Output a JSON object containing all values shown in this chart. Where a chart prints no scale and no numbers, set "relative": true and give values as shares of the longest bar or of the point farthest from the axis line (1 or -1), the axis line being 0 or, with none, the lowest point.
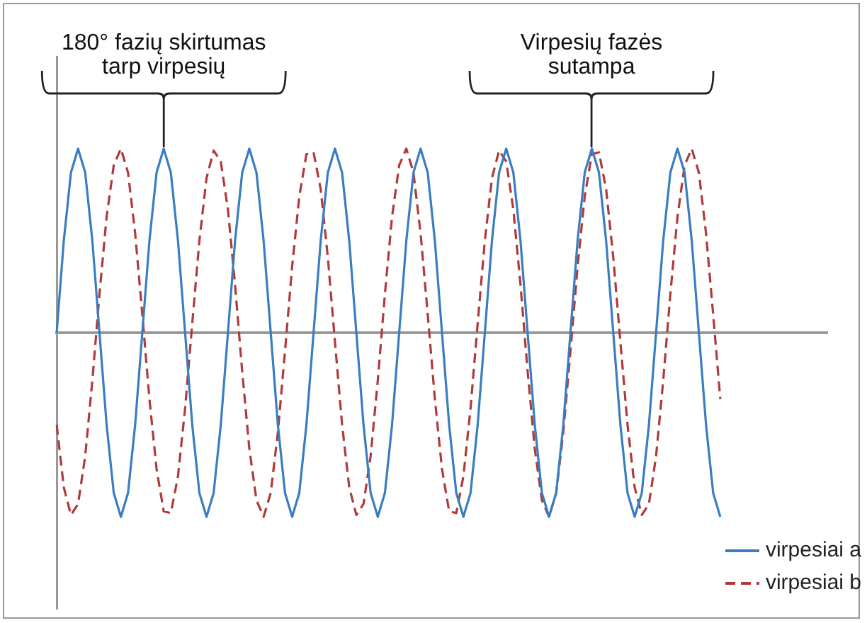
{
  "chart_data": {
    "type": "line",
    "relative": true,
    "grid": false,
    "marker": "none",
    "legend": "bottom right",
    "categories": [
      null,
      null,
      null,
      null,
      null,
      null,
      null,
      null,
      null,
      null,
      null,
      null,
      null,
      null,
      null,
      null,
      null,
      null,
      null,
      null,
      null,
      null,
      null,
      null,
      null,
      null,
      null,
      null,
      null,
      null,
      null,
      null,
      null,
      null,
      null,
      null,
      null,
      null,
      null,
      null,
      null,
      null,
      null,
      null,
      null,
      null,
      null,
      null,
      null,
      null,
      null,
      null,
      null,
      null,
      null,
      null,
      null,
      null,
      null,
      null,
      null,
      null,
      null,
      null,
      null,
      null,
      null,
      null,
      null,
      null,
      null,
      null,
      null,
      null,
      null,
      null,
      null,
      null,
      null,
      null,
      null,
      null,
      null,
      null,
      null,
      null,
      null,
      null,
      null,
      null,
      null,
      null,
      null,
      null,
      null,
      null,
      null,
      null,
      null,
      null,
      null,
      null,
      null,
      null,
      null,
      null,
      null,
      null,
      null
    ],
    "annotations": [
      "180° fazių skirtumas tarp virpesių",
      "Virpesių fazės sutampa"
    ],
    "series": [
      {
        "name": "virpesiai a",
        "color": "#3a7dc0",
        "line_style": "solid",
        "values": [
          0,
          0.5,
          0.87,
          1,
          0.87,
          0.5,
          0,
          -0.5,
          -0.87,
          -1,
          -0.87,
          -0.5,
          0,
          0.5,
          0.87,
          1,
          0.87,
          0.5,
          0,
          -0.5,
          -0.87,
          -1,
          -0.87,
          -0.5,
          0,
          0.5,
          0.87,
          1,
          0.87,
          0.5,
          0,
          -0.5,
          -0.87,
          -1,
          -0.87,
          -0.5,
          0,
          0.5,
          0.87,
          1,
          0.87,
          0.5,
          0,
          -0.5,
          -0.87,
          -1,
          -0.87,
          -0.5,
          0,
          0.5,
          0.87,
          1,
          0.87,
          0.5,
          0,
          -0.5,
          -0.87,
          -1,
          -0.87,
          -0.5,
          0,
          0.5,
          0.87,
          1,
          0.87,
          0.5,
          0,
          -0.5,
          -0.87,
          -1,
          -0.87,
          -0.5,
          0,
          0.5,
          0.87,
          1,
          0.87,
          0.5,
          0,
          -0.5,
          -0.87,
          -1,
          -0.87,
          -0.5,
          0,
          0.5,
          0.87,
          1,
          0.87,
          0.5,
          0,
          -0.5,
          -0.87,
          -1,
          null,
          null,
          null,
          null,
          null,
          null,
          null,
          null,
          null,
          null,
          null,
          null,
          null,
          null,
          null
        ]
      },
      {
        "name": "virpesiai b",
        "color": "#b03a3a",
        "line_style": "dashed",
        "values": [
          -0.5,
          -0.84,
          -0.99,
          -0.93,
          -0.67,
          -0.26,
          0.21,
          0.63,
          0.91,
          1,
          0.87,
          0.54,
          0.1,
          -0.36,
          -0.74,
          -0.97,
          -0.98,
          -0.78,
          -0.41,
          0.05,
          0.5,
          0.84,
          0.99,
          0.93,
          0.67,
          0.26,
          -0.21,
          -0.63,
          -0.91,
          -1,
          -0.87,
          -0.54,
          -0.1,
          0.36,
          0.74,
          0.97,
          0.98,
          0.78,
          0.41,
          -0.05,
          -0.5,
          -0.84,
          -0.99,
          -0.93,
          -0.67,
          -0.26,
          0.21,
          0.63,
          0.91,
          1,
          0.87,
          0.54,
          0.1,
          -0.36,
          -0.74,
          -0.97,
          -0.98,
          -0.78,
          -0.41,
          0.05,
          0.5,
          0.84,
          0.99,
          0.93,
          0.67,
          0.26,
          -0.21,
          -0.63,
          -0.91,
          -1,
          -0.87,
          -0.54,
          -0.1,
          0.36,
          0.74,
          0.97,
          0.98,
          0.78,
          0.41,
          -0.05,
          -0.5,
          -0.84,
          -0.99,
          -0.93,
          -0.67,
          -0.26,
          0.21,
          0.63,
          0.91,
          1,
          0.87,
          0.54,
          0.1,
          -0.36,
          null,
          null,
          null,
          null,
          null,
          null,
          null,
          null,
          null,
          null,
          null,
          null,
          null,
          null,
          null
        ]
      }
    ]
  }
}
